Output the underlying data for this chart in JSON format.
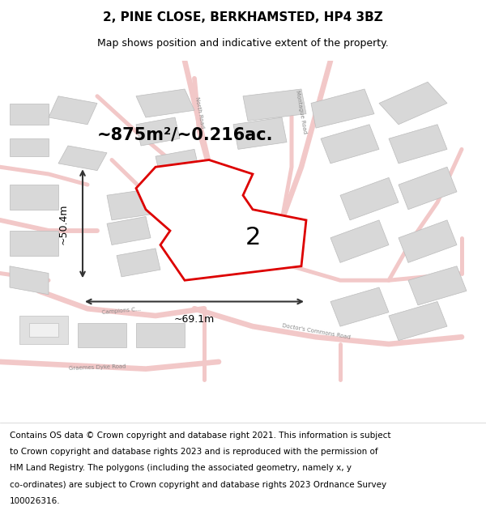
{
  "title": "2, PINE CLOSE, BERKHAMSTED, HP4 3BZ",
  "subtitle": "Map shows position and indicative extent of the property.",
  "area_text": "~875m²/~0.216ac.",
  "dim_width": "~69.1m",
  "dim_height": "~50.4m",
  "plot_number": "2",
  "footer_lines": [
    "Contains OS data © Crown copyright and database right 2021. This information is subject",
    "to Crown copyright and database rights 2023 and is reproduced with the permission of",
    "HM Land Registry. The polygons (including the associated geometry, namely x, y",
    "co-ordinates) are subject to Crown copyright and database rights 2023 Ordnance Survey",
    "100026316."
  ],
  "bg_color": "#f5f5f5",
  "map_bg": "#ffffff",
  "road_color": "#e8a0a0",
  "road_light": "#f2c8c8",
  "building_fill": "#d8d8d8",
  "building_edge": "#bbbbbb",
  "plot_fill": "#ffffff",
  "plot_edge": "#dd0000",
  "dim_color": "#333333",
  "title_fontsize": 11,
  "subtitle_fontsize": 9,
  "area_fontsize": 16,
  "footer_fontsize": 7.5
}
